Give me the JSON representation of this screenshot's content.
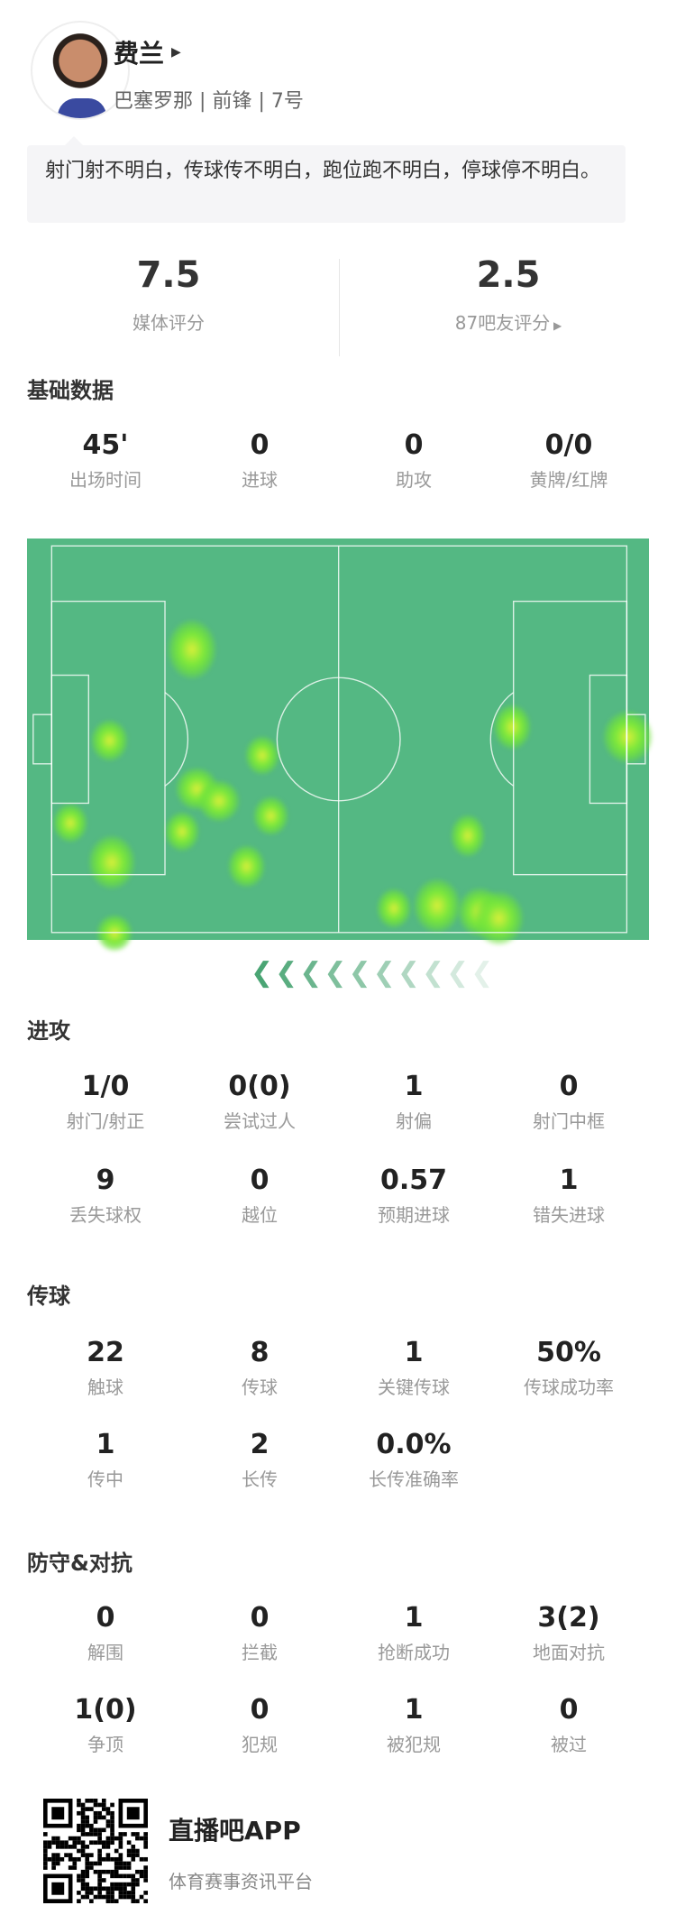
{
  "player": {
    "name": "费兰",
    "team": "巴塞罗那",
    "position": "前锋",
    "number": "7号",
    "sep": "|"
  },
  "comment": "射门射不明白，传球传不明白，跑位跑不明白，停球停不明白。",
  "ratings": {
    "media": {
      "value": "7.5",
      "label": "媒体评分"
    },
    "fans": {
      "value": "2.5",
      "label": "87吧友评分"
    }
  },
  "sections": {
    "basic": {
      "title": "基础数据",
      "items": [
        {
          "v": "45'",
          "l": "出场时间"
        },
        {
          "v": "0",
          "l": "进球"
        },
        {
          "v": "0",
          "l": "助攻"
        },
        {
          "v": "0/0",
          "l": "黄牌/红牌"
        }
      ]
    },
    "attack": {
      "title": "进攻",
      "items": [
        {
          "v": "1/0",
          "l": "射门/射正"
        },
        {
          "v": "0(0)",
          "l": "尝试过人"
        },
        {
          "v": "1",
          "l": "射偏"
        },
        {
          "v": "0",
          "l": "射门中框"
        },
        {
          "v": "9",
          "l": "丢失球权"
        },
        {
          "v": "0",
          "l": "越位"
        },
        {
          "v": "0.57",
          "l": "预期进球"
        },
        {
          "v": "1",
          "l": "错失进球"
        }
      ]
    },
    "passing": {
      "title": "传球",
      "items": [
        {
          "v": "22",
          "l": "触球"
        },
        {
          "v": "8",
          "l": "传球"
        },
        {
          "v": "1",
          "l": "关键传球"
        },
        {
          "v": "50%",
          "l": "传球成功率"
        },
        {
          "v": "1",
          "l": "传中"
        },
        {
          "v": "2",
          "l": "长传"
        },
        {
          "v": "0.0%",
          "l": "长传准确率"
        }
      ]
    },
    "defense": {
      "title": "防守&对抗",
      "items": [
        {
          "v": "0",
          "l": "解围"
        },
        {
          "v": "0",
          "l": "拦截"
        },
        {
          "v": "1",
          "l": "抢断成功"
        },
        {
          "v": "3(2)",
          "l": "地面对抗"
        },
        {
          "v": "1(0)",
          "l": "争顶"
        },
        {
          "v": "0",
          "l": "犯规"
        },
        {
          "v": "1",
          "l": "被犯规"
        },
        {
          "v": "0",
          "l": "被过"
        }
      ]
    }
  },
  "heatmap": {
    "pitch_color": "#54b883",
    "hot_color": "#7ee83a",
    "attack_direction": "left"
  },
  "footer": {
    "app_name": "直播吧APP",
    "tagline": "体育赛事资讯平台"
  }
}
